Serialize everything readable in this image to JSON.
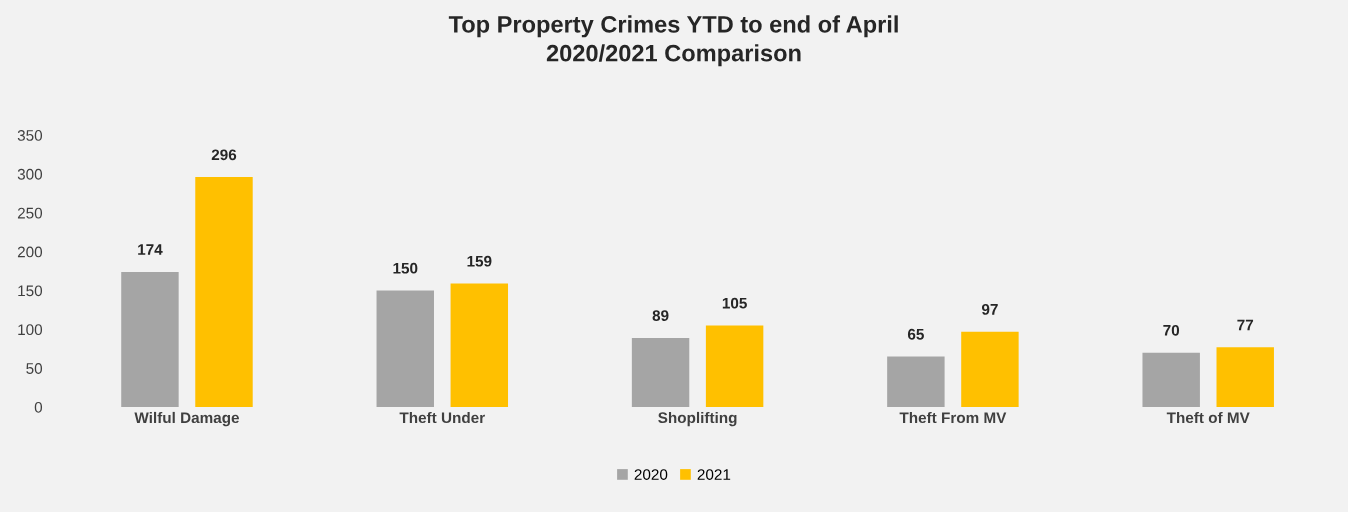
{
  "chart_data": {
    "type": "bar",
    "title": "Top Property Crimes YTD to end of April\n2020/2021 Comparison",
    "categories": [
      "Wilful Damage",
      "Theft Under",
      "Shoplifting",
      "Theft From MV",
      "Theft of MV"
    ],
    "series": [
      {
        "name": "2020",
        "color": "#a5a5a5",
        "values": [
          174,
          150,
          89,
          65,
          70
        ]
      },
      {
        "name": "2021",
        "color": "#ffc000",
        "values": [
          296,
          159,
          105,
          97,
          77
        ]
      }
    ],
    "ylim": [
      0,
      350
    ],
    "yticks": [
      0,
      50,
      100,
      150,
      200,
      250,
      300,
      350
    ],
    "data_labels": true,
    "grid": false,
    "legend": "bottom"
  }
}
